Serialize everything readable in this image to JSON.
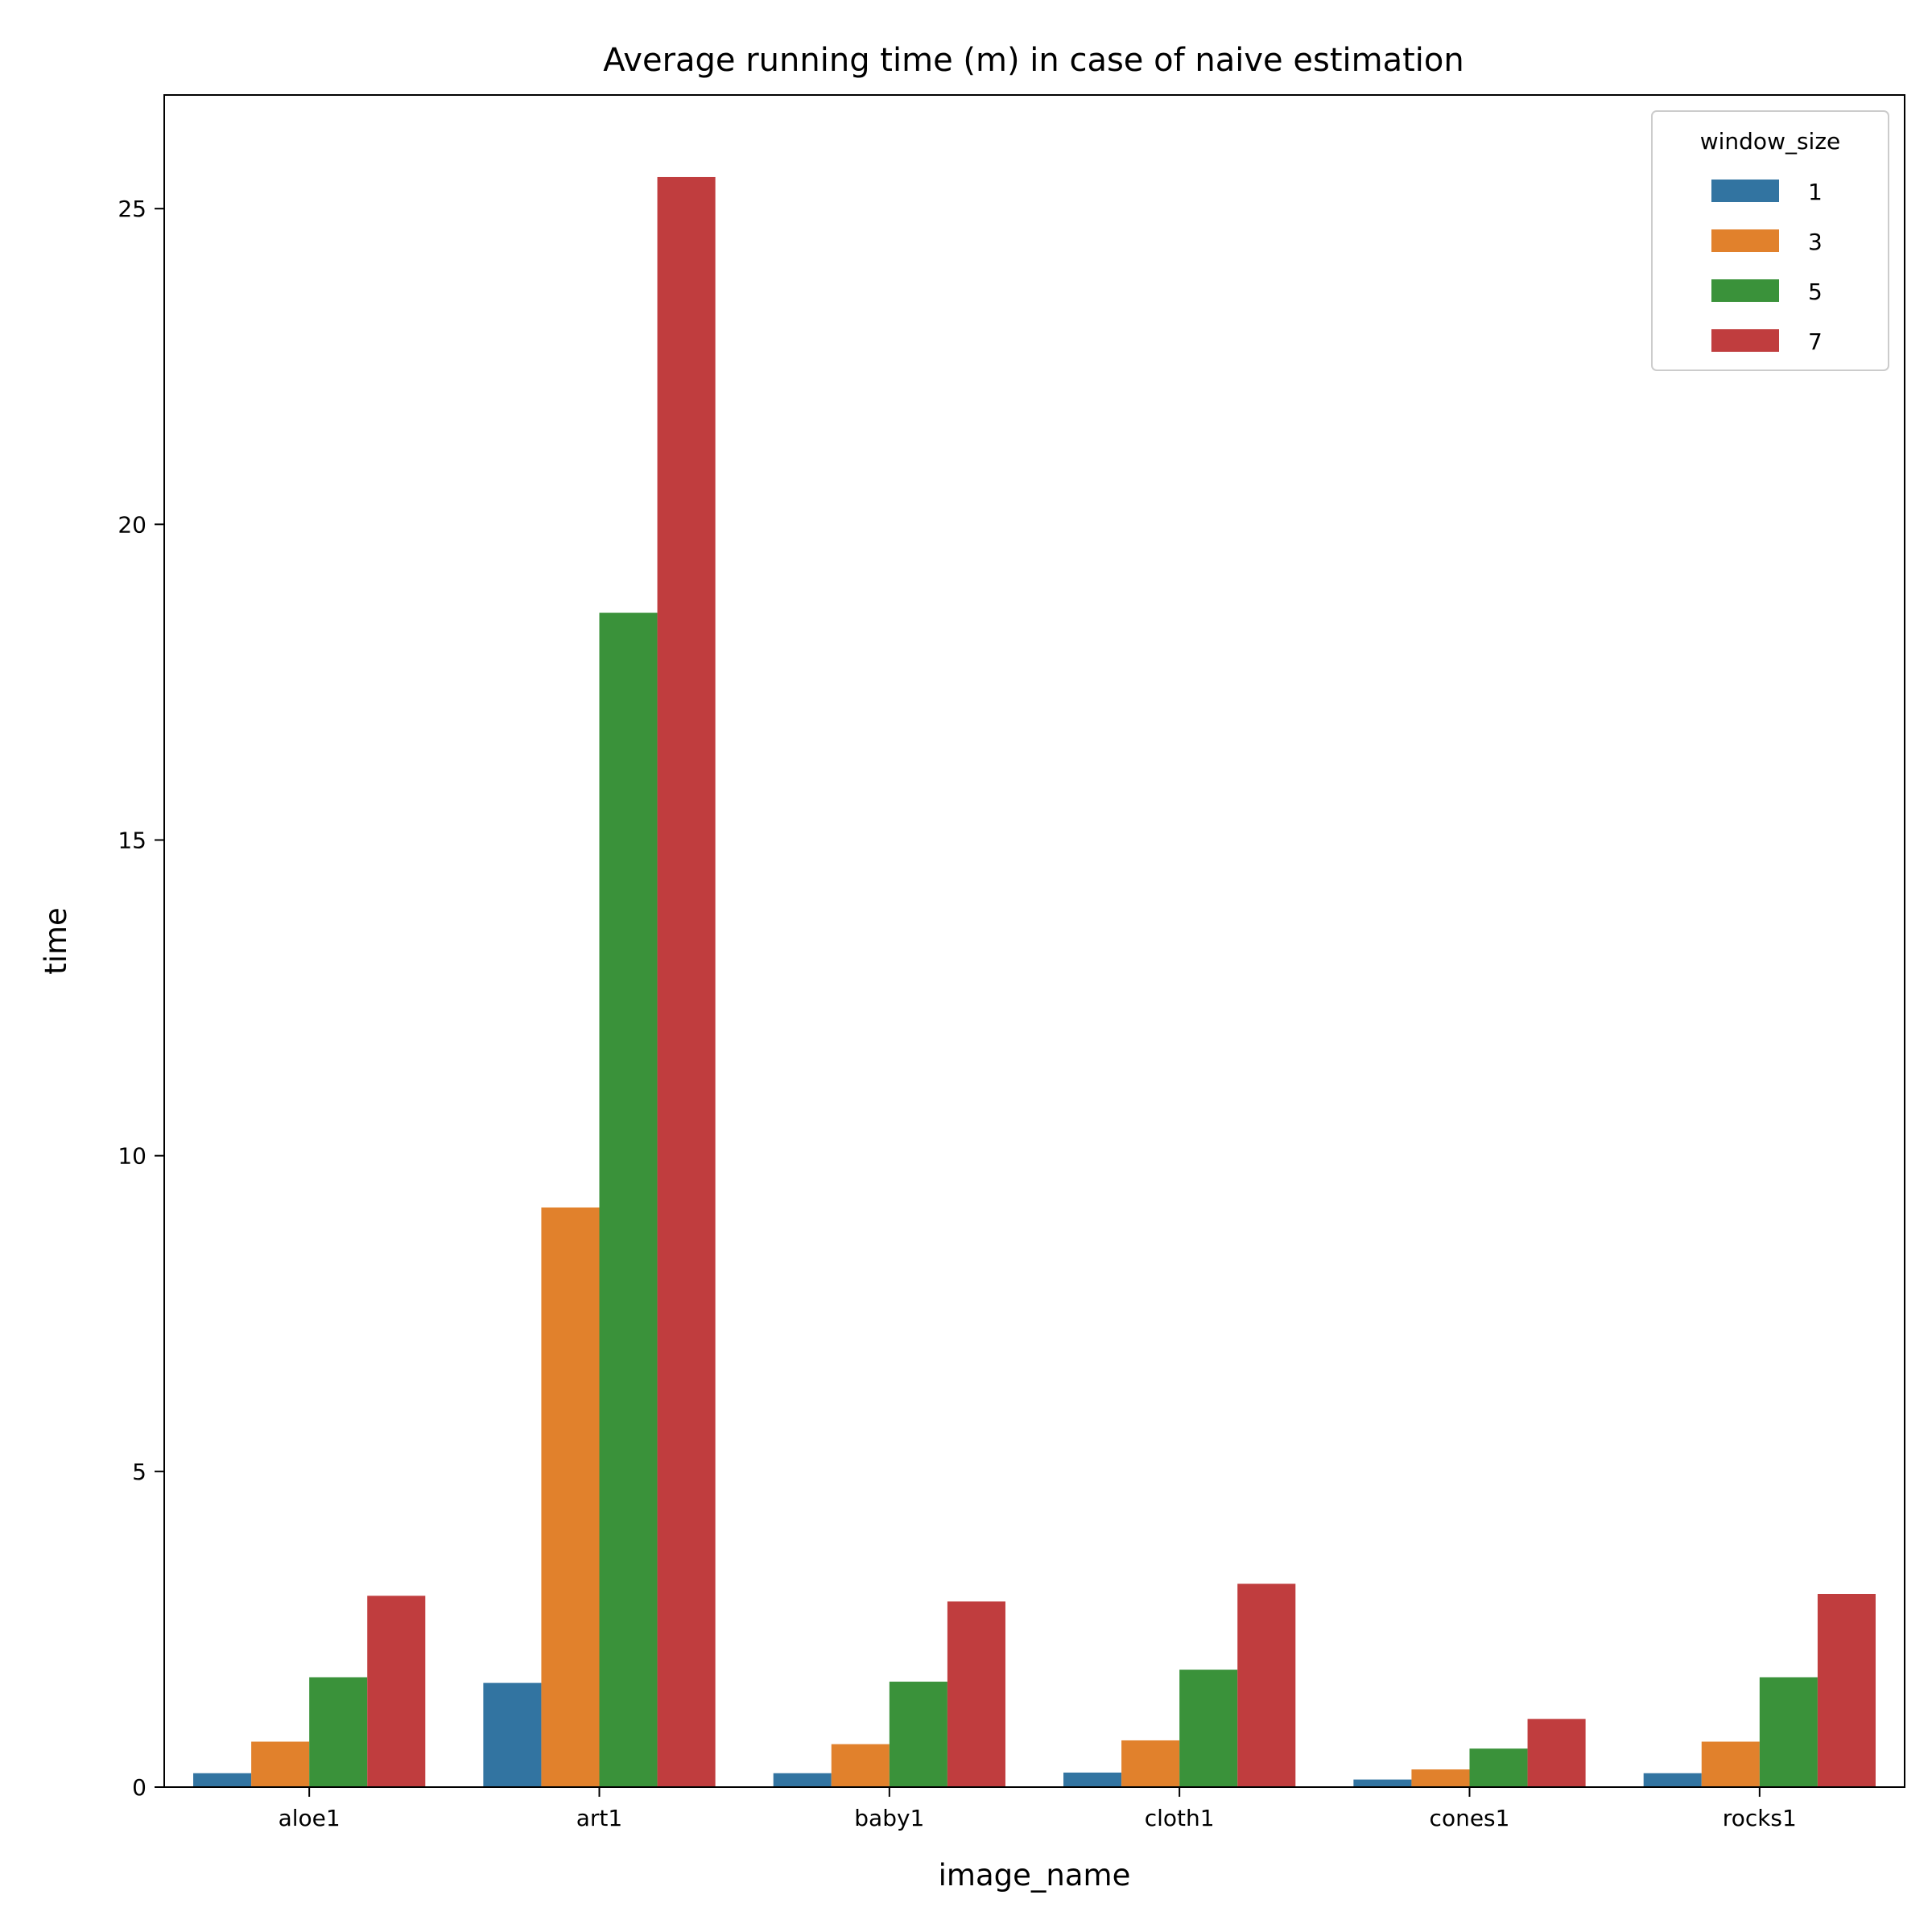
{
  "chart_data": {
    "type": "bar",
    "title": "Average running time (m) in case of naive estimation",
    "xlabel": "image_name",
    "ylabel": "time",
    "categories": [
      "aloe1",
      "art1",
      "baby1",
      "cloth1",
      "cones1",
      "rocks1"
    ],
    "series": [
      {
        "name": "1",
        "color": "#3274a1",
        "values": [
          0.22,
          1.65,
          0.22,
          0.23,
          0.12,
          0.22
        ]
      },
      {
        "name": "3",
        "color": "#e1812c",
        "values": [
          0.72,
          9.18,
          0.68,
          0.74,
          0.28,
          0.72
        ]
      },
      {
        "name": "5",
        "color": "#3a923a",
        "values": [
          1.74,
          18.6,
          1.67,
          1.86,
          0.61,
          1.74
        ]
      },
      {
        "name": "7",
        "color": "#c03d3e",
        "values": [
          3.03,
          25.5,
          2.94,
          3.22,
          1.08,
          3.06
        ]
      }
    ],
    "ylim": [
      0,
      26.8
    ],
    "yticks": [
      0,
      5,
      10,
      15,
      20,
      25
    ],
    "legend": {
      "title": "window_size",
      "placement": "top-right"
    },
    "grid": false
  }
}
